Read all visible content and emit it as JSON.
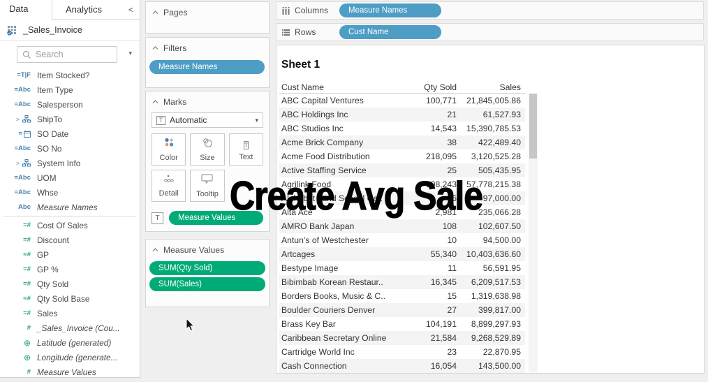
{
  "colors": {
    "pill_blue": "#4d9dc5",
    "pill_green": "#00ab77",
    "dimension_icon": "#4581ad",
    "measure_icon": "#1ea37c",
    "overlay_text": "#000000"
  },
  "icons": {
    "collapse": "<",
    "search_caret": "▾",
    "dropdown_caret": "▾",
    "expand": ">",
    "globe": "⊕",
    "t_glyph": "T"
  },
  "data_pane": {
    "tabs": {
      "data": "Data",
      "analytics": "Analytics"
    },
    "datasource": "_Sales_Invoice",
    "search": {
      "placeholder": "Search"
    },
    "fields": [
      {
        "icon": "boolean-calc-icon",
        "kind": "text",
        "glyph": "=T|F",
        "role": "dimension",
        "label": "Item Stocked?"
      },
      {
        "icon": "string-calc-icon",
        "kind": "text",
        "glyph": "=Abc",
        "role": "dimension",
        "label": "Item Type"
      },
      {
        "icon": "string-calc-icon",
        "kind": "text",
        "glyph": "=Abc",
        "role": "dimension",
        "label": "Salesperson"
      },
      {
        "icon": "hierarchy-icon",
        "kind": "hier",
        "role": "dimension",
        "label": "ShipTo",
        "expand": true
      },
      {
        "icon": "date-calc-icon",
        "kind": "cal",
        "role": "dimension",
        "label": "SO Date"
      },
      {
        "icon": "string-calc-icon",
        "kind": "text",
        "glyph": "=Abc",
        "role": "dimension",
        "label": "SO No"
      },
      {
        "icon": "hierarchy-icon",
        "kind": "hier",
        "role": "dimension",
        "label": "System Info",
        "expand": true
      },
      {
        "icon": "string-calc-icon",
        "kind": "text",
        "glyph": "=Abc",
        "role": "dimension",
        "label": "UOM"
      },
      {
        "icon": "string-calc-icon",
        "kind": "text",
        "glyph": "=Abc",
        "role": "dimension",
        "label": "Whse"
      },
      {
        "icon": "string-icon",
        "kind": "text",
        "glyph": "Abc",
        "role": "dimension",
        "label": "Measure Names",
        "italic": true
      },
      {
        "divider": true
      },
      {
        "icon": "number-calc-icon",
        "kind": "text",
        "glyph": "=#",
        "role": "measure",
        "label": "Cost Of Sales"
      },
      {
        "icon": "number-calc-icon",
        "kind": "text",
        "glyph": "=#",
        "role": "measure",
        "label": "Discount"
      },
      {
        "icon": "number-calc-icon",
        "kind": "text",
        "glyph": "=#",
        "role": "measure",
        "label": "GP"
      },
      {
        "icon": "number-calc-icon",
        "kind": "text",
        "glyph": "=#",
        "role": "measure",
        "label": "GP %"
      },
      {
        "icon": "number-calc-icon",
        "kind": "text",
        "glyph": "=#",
        "role": "measure",
        "label": "Qty Sold"
      },
      {
        "icon": "number-calc-icon",
        "kind": "text",
        "glyph": "=#",
        "role": "measure",
        "label": "Qty Sold Base"
      },
      {
        "icon": "number-calc-icon",
        "kind": "text",
        "glyph": "=#",
        "role": "measure",
        "label": "Sales"
      },
      {
        "icon": "number-icon",
        "kind": "text",
        "glyph": "#",
        "role": "measure",
        "label": "_Sales_Invoice (Cou...",
        "italic": true
      },
      {
        "icon": "globe-icon",
        "kind": "globe",
        "role": "measure",
        "label": "Latitude (generated)",
        "italic": true
      },
      {
        "icon": "globe-icon",
        "kind": "globe",
        "role": "measure",
        "label": "Longitude (generate...",
        "italic": true
      },
      {
        "icon": "number-icon",
        "kind": "text",
        "glyph": "#",
        "role": "measure",
        "label": "Measure Values",
        "italic": true
      }
    ]
  },
  "cards": {
    "pages": {
      "title": "Pages"
    },
    "filters": {
      "title": "Filters",
      "pills": [
        {
          "label": "Measure Names",
          "color": "blue"
        }
      ]
    },
    "marks": {
      "title": "Marks",
      "mark_type": "Automatic",
      "buttons": [
        {
          "label": "Color",
          "icon": "color-icon"
        },
        {
          "label": "Size",
          "icon": "size-icon"
        },
        {
          "label": "Text",
          "icon": "text-icon"
        },
        {
          "label": "Detail",
          "icon": "detail-icon"
        },
        {
          "label": "Tooltip",
          "icon": "tooltip-icon"
        }
      ],
      "pill": {
        "label": "Measure Values",
        "color": "green"
      }
    },
    "measure_values": {
      "title": "Measure Values",
      "pills": [
        {
          "label": "SUM(Qty Sold)",
          "color": "green"
        },
        {
          "label": "SUM(Sales)",
          "color": "green"
        }
      ]
    }
  },
  "shelves": {
    "columns": {
      "label": "Columns",
      "pills": [
        {
          "label": "Measure Names",
          "color": "blue"
        }
      ]
    },
    "rows": {
      "label": "Rows",
      "pills": [
        {
          "label": "Cust Name",
          "color": "blue"
        }
      ]
    }
  },
  "sheet": {
    "title": "Sheet 1",
    "table": {
      "columns": [
        "Cust Name",
        "Qty Sold",
        "Sales"
      ],
      "rows": [
        [
          "ABC Capital Ventures",
          "100,771",
          "21,845,005.86"
        ],
        [
          "ABC Holdings Inc",
          "21",
          "61,527.93"
        ],
        [
          "ABC Studios Inc",
          "14,543",
          "15,390,785.53"
        ],
        [
          "Acme Brick Company",
          "38",
          "422,489.40"
        ],
        [
          "Acme Food Distribution",
          "218,095",
          "3,120,525.28"
        ],
        [
          "Active Staffing Service",
          "25",
          "505,435.95"
        ],
        [
          "Agrilink Food",
          "198,243",
          "57,778,215.38"
        ],
        [
          "Alphabet Land School Ca..",
          "16",
          "97,000.00"
        ],
        [
          "Alta Ace",
          "2,981",
          "235,066.28"
        ],
        [
          "AMRO Bank Japan",
          "108",
          "102,607.50"
        ],
        [
          "Antun’s of Westchester",
          "10",
          "94,500.00"
        ],
        [
          "Artcages",
          "55,340",
          "10,403,636.60"
        ],
        [
          "Bestype Image",
          "11",
          "56,591.95"
        ],
        [
          "Bibimbab Korean Restaur..",
          "16,345",
          "6,209,517.53"
        ],
        [
          "Borders Books, Music & C..",
          "15",
          "1,319,638.98"
        ],
        [
          "Boulder Couriers Denver",
          "27",
          "399,817.00"
        ],
        [
          "Brass Key Bar",
          "104,191",
          "8,899,297.93"
        ],
        [
          "Caribbean Secretary Online",
          "21,584",
          "9,268,529.89"
        ],
        [
          "Cartridge World Inc",
          "23",
          "22,870.95"
        ],
        [
          "Cash Connection",
          "16,054",
          "143,500.00"
        ]
      ]
    }
  },
  "overlay_text": "Create Avg Sale"
}
